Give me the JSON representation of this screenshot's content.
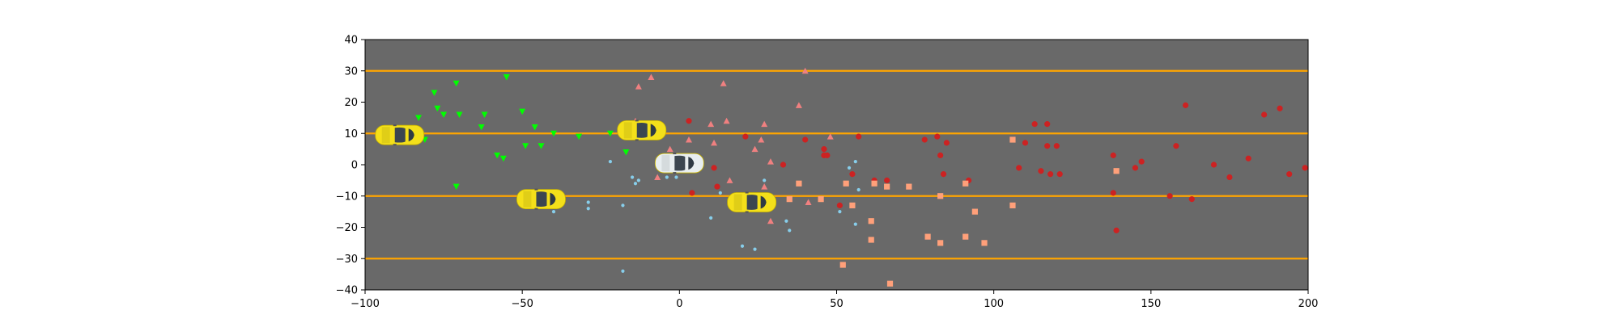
{
  "chart_data": {
    "type": "scatter",
    "title": "",
    "xlabel": "",
    "ylabel": "",
    "xlim": [
      -100,
      200
    ],
    "ylim": [
      -40,
      40
    ],
    "x_ticks": [
      -100,
      -50,
      0,
      50,
      100,
      150,
      200
    ],
    "y_ticks": [
      -40,
      -30,
      -20,
      -10,
      0,
      10,
      20,
      30,
      40
    ],
    "x_tick_labels": [
      "−100",
      "−50",
      "0",
      "50",
      "100",
      "150",
      "200"
    ],
    "y_tick_labels": [
      "−40",
      "−30",
      "−20",
      "−10",
      "0",
      "10",
      "20",
      "30",
      "40"
    ],
    "grid": false,
    "legend": "none",
    "background_color": "#696969",
    "lane_lines": {
      "y": [
        -30,
        -10,
        10,
        30
      ],
      "color": "#ffa500"
    },
    "vehicles": [
      {
        "name": "yellow-car",
        "x": -89,
        "y": 9.5,
        "color": "#f4e01a"
      },
      {
        "name": "yellow-car",
        "x": -44,
        "y": -11,
        "color": "#f4e01a"
      },
      {
        "name": "yellow-car",
        "x": -12,
        "y": 11,
        "color": "#f4e01a"
      },
      {
        "name": "yellow-car",
        "x": 23,
        "y": -12,
        "color": "#f4e01a"
      },
      {
        "name": "white-car",
        "x": 0,
        "y": 0.5,
        "color": "#e8eef0"
      }
    ],
    "series": [
      {
        "marker": "triangle-down",
        "color": "#00ff00",
        "points": [
          [
            -71,
            26
          ],
          [
            -55,
            28
          ],
          [
            -78,
            23
          ],
          [
            -77,
            18
          ],
          [
            -75,
            16
          ],
          [
            -70,
            16
          ],
          [
            -62,
            16
          ],
          [
            -50,
            17
          ],
          [
            -83,
            15
          ],
          [
            -63,
            12
          ],
          [
            -46,
            12
          ],
          [
            -81,
            8
          ],
          [
            -40,
            10
          ],
          [
            -22,
            10
          ],
          [
            -32,
            9
          ],
          [
            -44,
            6
          ],
          [
            -49,
            6
          ],
          [
            -58,
            3
          ],
          [
            -56,
            2
          ],
          [
            -17,
            4
          ],
          [
            -71,
            -7
          ]
        ]
      },
      {
        "marker": "triangle-up",
        "color": "#f08080",
        "points": [
          [
            -9,
            28
          ],
          [
            14,
            26
          ],
          [
            -13,
            25
          ],
          [
            40,
            30
          ],
          [
            38,
            19
          ],
          [
            15,
            14
          ],
          [
            -14,
            14
          ],
          [
            10,
            13
          ],
          [
            27,
            13
          ],
          [
            26,
            8
          ],
          [
            3,
            8
          ],
          [
            11,
            7
          ],
          [
            48,
            9
          ],
          [
            24,
            5
          ],
          [
            -3,
            5
          ],
          [
            29,
            1
          ],
          [
            16,
            -5
          ],
          [
            -7,
            -4
          ],
          [
            27,
            -7
          ],
          [
            29,
            -18
          ],
          [
            41,
            -12
          ]
        ]
      },
      {
        "marker": "circle",
        "color": "#cc2222",
        "points": [
          [
            3,
            14
          ],
          [
            21,
            9
          ],
          [
            33,
            0
          ],
          [
            40,
            8
          ],
          [
            46,
            5
          ],
          [
            46,
            3
          ],
          [
            47,
            3
          ],
          [
            57,
            9
          ],
          [
            11,
            -1
          ],
          [
            12,
            -7
          ],
          [
            4,
            -9
          ],
          [
            55,
            -3
          ],
          [
            62,
            -5
          ],
          [
            66,
            -5
          ],
          [
            51,
            -13
          ],
          [
            78,
            8
          ],
          [
            82,
            9
          ],
          [
            83,
            3
          ],
          [
            85,
            7
          ],
          [
            84,
            -3
          ],
          [
            92,
            -5
          ],
          [
            108,
            -1
          ],
          [
            110,
            7
          ],
          [
            113,
            13
          ],
          [
            117,
            13
          ],
          [
            115,
            -2
          ],
          [
            117,
            6
          ],
          [
            118,
            -3
          ],
          [
            120,
            6
          ],
          [
            121,
            -3
          ],
          [
            138,
            3
          ],
          [
            138,
            -9
          ],
          [
            139,
            -21
          ],
          [
            145,
            -1
          ],
          [
            147,
            1
          ],
          [
            156,
            -10
          ],
          [
            158,
            6
          ],
          [
            161,
            19
          ],
          [
            163,
            -11
          ],
          [
            170,
            0
          ],
          [
            175,
            -4
          ],
          [
            181,
            2
          ],
          [
            186,
            16
          ],
          [
            191,
            18
          ],
          [
            194,
            -3
          ],
          [
            199,
            -1
          ]
        ]
      },
      {
        "marker": "square",
        "color": "#ffa07a",
        "points": [
          [
            38,
            -6
          ],
          [
            35,
            -11
          ],
          [
            45,
            -11
          ],
          [
            53,
            -6
          ],
          [
            55,
            -13
          ],
          [
            62,
            -6
          ],
          [
            66,
            -7
          ],
          [
            73,
            -7
          ],
          [
            61,
            -18
          ],
          [
            61,
            -24
          ],
          [
            52,
            -32
          ],
          [
            67,
            -38
          ],
          [
            79,
            -23
          ],
          [
            83,
            -10
          ],
          [
            83,
            -25
          ],
          [
            91,
            -23
          ],
          [
            91,
            -6
          ],
          [
            94,
            -15
          ],
          [
            97,
            -25
          ],
          [
            106,
            8
          ],
          [
            106,
            -13
          ],
          [
            139,
            -2
          ]
        ]
      },
      {
        "marker": "small-dot",
        "color": "#87ceeb",
        "points": [
          [
            -22,
            1
          ],
          [
            -15,
            -4
          ],
          [
            -14,
            -6
          ],
          [
            -13,
            -5
          ],
          [
            -18,
            -13
          ],
          [
            -29,
            -12
          ],
          [
            -29,
            -14
          ],
          [
            -40,
            -15
          ],
          [
            -18,
            -34
          ],
          [
            -43,
            -11
          ],
          [
            -4,
            -4
          ],
          [
            -1,
            -4
          ],
          [
            10,
            -17
          ],
          [
            13,
            -9
          ],
          [
            20,
            -26
          ],
          [
            24,
            -27
          ],
          [
            34,
            -18
          ],
          [
            35,
            -21
          ],
          [
            27,
            -5
          ],
          [
            56,
            1
          ],
          [
            54,
            -1
          ],
          [
            56,
            -19
          ],
          [
            51,
            -15
          ],
          [
            57,
            -8
          ]
        ]
      }
    ]
  }
}
